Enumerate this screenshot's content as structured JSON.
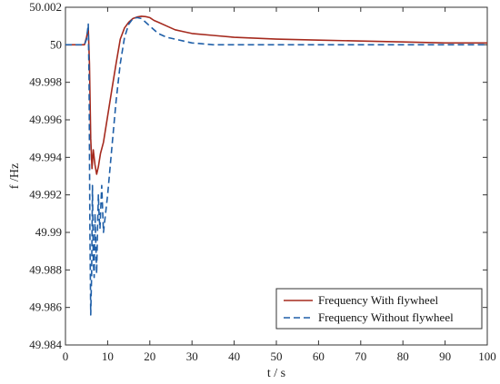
{
  "chart_data": {
    "type": "line",
    "title": "",
    "xlabel": "t / s",
    "ylabel": "f /Hz",
    "xlim": [
      0,
      100
    ],
    "ylim": [
      49.984,
      50.002
    ],
    "xticks": [
      0,
      10,
      20,
      30,
      40,
      50,
      60,
      70,
      80,
      90,
      100
    ],
    "yticks": [
      49.984,
      49.986,
      49.988,
      49.99,
      49.992,
      49.994,
      49.996,
      49.998,
      50,
      50.002
    ],
    "ytick_labels": [
      "49.984",
      "49.986",
      "49.988",
      "49.99",
      "49.992",
      "49.994",
      "49.996",
      "49.998",
      "50",
      "50.002"
    ],
    "xtick_labels": [
      "0",
      "10",
      "20",
      "30",
      "40",
      "50",
      "60",
      "70",
      "80",
      "90",
      "100"
    ],
    "grid": false,
    "legend": {
      "position": "bottom-right"
    },
    "series": [
      {
        "name": "Frequency With flywheel",
        "color": "#a52a1e",
        "dash": "solid",
        "x": [
          0,
          4.5,
          5,
          5.4,
          5.7,
          6.0,
          6.3,
          6.6,
          7.0,
          7.4,
          7.8,
          8.3,
          9.0,
          10.0,
          11.0,
          12.0,
          13.0,
          14.0,
          15.0,
          16.0,
          17.0,
          18.0,
          19.0,
          20.0,
          21.0,
          22.0,
          24.0,
          26.0,
          28.0,
          30.0,
          35.0,
          40.0,
          50.0,
          60.0,
          70.0,
          80.0,
          90.0,
          100.0
        ],
        "y": [
          50.0,
          50.0,
          50.0004,
          50.0009,
          49.999,
          49.995,
          49.9934,
          49.9944,
          49.9936,
          49.9931,
          49.9935,
          49.9942,
          49.9948,
          49.9962,
          49.9976,
          49.999,
          50.0003,
          50.0009,
          50.0012,
          50.0014,
          50.00148,
          50.00152,
          50.0015,
          50.00145,
          50.0013,
          50.0012,
          50.001,
          50.0008,
          50.0007,
          50.0006,
          50.0005,
          50.0004,
          50.0003,
          50.00025,
          50.0002,
          50.00015,
          50.0001,
          50.0001
        ]
      },
      {
        "name": "Frequency Without flywheel",
        "color": "#1f5fa8",
        "dash": "dashed",
        "x": [
          0,
          4.5,
          5.0,
          5.4,
          5.6,
          5.8,
          6.0,
          6.2,
          6.4,
          6.6,
          6.8,
          7.0,
          7.2,
          7.4,
          7.6,
          7.8,
          8.0,
          8.2,
          8.4,
          8.6,
          9.0,
          10.0,
          11.0,
          12.0,
          13.0,
          14.0,
          15.0,
          16.0,
          17.0,
          18.0,
          19.0,
          20.0,
          22.0,
          24.0,
          26.0,
          28.0,
          30.0,
          35.0,
          40.0,
          50.0,
          60.0,
          70.0,
          80.0,
          90.0,
          100.0
        ],
        "y": [
          50.0,
          50.0,
          50.0003,
          50.0011,
          49.998,
          49.99,
          49.9856,
          49.9878,
          49.9925,
          49.9885,
          49.9876,
          49.991,
          49.9894,
          49.9878,
          49.9902,
          49.992,
          49.9908,
          49.9902,
          49.9915,
          49.9925,
          49.99,
          49.992,
          49.9945,
          49.997,
          49.999,
          50.0004,
          50.0011,
          50.0014,
          50.00145,
          50.0014,
          50.0012,
          50.001,
          50.0006,
          50.0004,
          50.0003,
          50.0002,
          50.0001,
          50.0,
          50.0,
          50.0,
          50.0,
          50.0,
          50.0,
          50.0,
          50.0
        ]
      }
    ]
  }
}
